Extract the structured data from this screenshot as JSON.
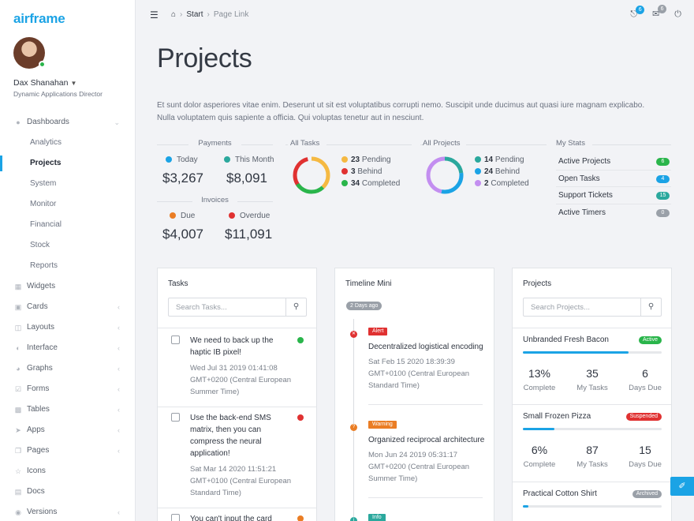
{
  "app": {
    "logo": "airframe"
  },
  "user": {
    "name": "Dax Shanahan",
    "role": "Dynamic Applications Director"
  },
  "nav": {
    "dashboards": "Dashboards",
    "sub": [
      "Analytics",
      "Projects",
      "System",
      "Monitor",
      "Financial",
      "Stock",
      "Reports"
    ],
    "items": [
      "Widgets",
      "Cards",
      "Layouts",
      "Interface",
      "Graphs",
      "Forms",
      "Tables",
      "Apps",
      "Pages",
      "Icons",
      "Docs",
      "Versions"
    ]
  },
  "breadcrumb": {
    "start": "Start",
    "current": "Page Link"
  },
  "notifications": {
    "bell_count": "6",
    "mail_count": "6"
  },
  "page": {
    "title": "Projects",
    "intro": "Et sunt dolor asperiores vitae enim. Deserunt ut sit est voluptatibus corrupti nemo. Suscipit unde ducimus aut quasi iure magnam explicabo. Nulla voluptatem quis sapiente a officia. Qui voluptas tenetur aut in nesciunt."
  },
  "payments": {
    "heading": "Payments",
    "today_label": "Today",
    "today_value": "$3,267",
    "month_label": "This Month",
    "month_value": "$8,091"
  },
  "invoices": {
    "heading": "Invoices",
    "due_label": "Due",
    "due_value": "$4,007",
    "overdue_label": "Overdue",
    "overdue_value": "$11,091"
  },
  "all_tasks": {
    "heading": "All Tasks",
    "pending": "23",
    "pending_label": "Pending",
    "behind": "3",
    "behind_label": "Behind",
    "completed": "34",
    "completed_label": "Completed"
  },
  "all_projects": {
    "heading": "All Projects",
    "pending": "14",
    "pending_label": "Pending",
    "behind": "24",
    "behind_label": "Behind",
    "completed": "2",
    "completed_label": "Completed"
  },
  "my_stats": {
    "heading": "My Stats",
    "rows": [
      {
        "label": "Active Projects",
        "value": "6"
      },
      {
        "label": "Open Tasks",
        "value": "4"
      },
      {
        "label": "Support Tickets",
        "value": "15"
      },
      {
        "label": "Active Timers",
        "value": "0"
      }
    ]
  },
  "colors": {
    "accent": "#1ba3e5",
    "green": "#2ab54b",
    "red": "#e03131",
    "yellow": "#f5b942",
    "orange": "#ea7d24",
    "purple": "#c38ef0",
    "teal": "#2ba89d",
    "gray": "#9aa0a8"
  },
  "tasks_card": {
    "title": "Tasks",
    "search_placeholder": "Search Tasks...",
    "items": [
      {
        "title": "We need to back up the haptic IB pixel!",
        "date": "Wed Jul 31 2019 01:41:08 GMT+0200 (Central European Summer Time)"
      },
      {
        "title": "Use the back-end SMS matrix, then you can compress the neural application!",
        "date": "Sat Mar 14 2020 11:51:21 GMT+0100 (Central European Standard Time)"
      },
      {
        "title": "You can't input the card"
      }
    ]
  },
  "timeline_card": {
    "title": "Timeline Mini",
    "top_badge": "2 Days ago",
    "items": [
      {
        "tag": "Alert",
        "title": "Decentralized logistical encoding",
        "date": "Sat Feb 15 2020 18:39:39 GMT+0100 (Central European Standard Time)"
      },
      {
        "tag": "Warning",
        "title": "Organized reciprocal architecture",
        "date": "Mon Jun 24 2019 05:31:17 GMT+0200 (Central European Summer Time)"
      },
      {
        "tag": "Info"
      }
    ]
  },
  "projects_card": {
    "title": "Projects",
    "search_placeholder": "Search Projects...",
    "items": [
      {
        "name": "Unbranded Fresh Bacon",
        "status": "Active",
        "progress": 0.76,
        "complete": "13%",
        "complete_label": "Complete",
        "tasks": "35",
        "tasks_label": "My Tasks",
        "due": "6",
        "due_label": "Days Due"
      },
      {
        "name": "Small Frozen Pizza",
        "status": "Suspended",
        "progress": 0.23,
        "complete": "6%",
        "complete_label": "Complete",
        "tasks": "87",
        "tasks_label": "My Tasks",
        "due": "15",
        "due_label": "Days Due"
      },
      {
        "name": "Practical Cotton Shirt",
        "status": "Archived",
        "progress": 0.04
      }
    ]
  }
}
